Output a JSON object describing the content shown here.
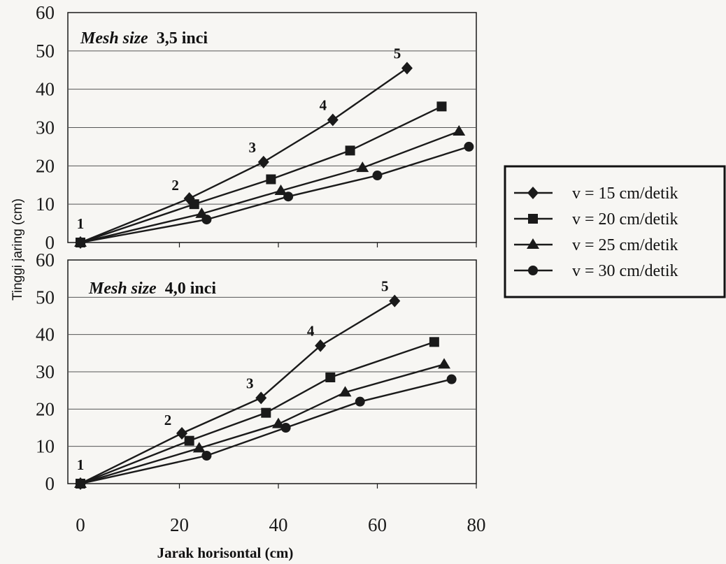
{
  "chart_data": [
    {
      "type": "line",
      "panel": "top",
      "title_italic": "Mesh size",
      "title_rest": "3,5 inci",
      "ylim": [
        0,
        60
      ],
      "xlim": [
        0,
        80
      ],
      "yticks": [
        "0",
        "10",
        "20",
        "30",
        "40",
        "50",
        "60"
      ],
      "grid": true,
      "series": [
        {
          "name": "v = 15 cm/detik",
          "marker": "diamond",
          "points": [
            [
              0,
              0
            ],
            [
              22,
              11.5
            ],
            [
              37,
              21
            ],
            [
              51,
              32
            ],
            [
              66,
              45.5
            ]
          ]
        },
        {
          "name": "v = 20 cm/detik",
          "marker": "square",
          "points": [
            [
              0,
              0
            ],
            [
              23,
              10
            ],
            [
              38.5,
              16.5
            ],
            [
              54.5,
              24
            ],
            [
              73,
              35.5
            ]
          ]
        },
        {
          "name": "v = 25 cm/detik",
          "marker": "triangle",
          "points": [
            [
              0,
              0
            ],
            [
              24.5,
              7.5
            ],
            [
              40.5,
              13.5
            ],
            [
              57,
              19.5
            ],
            [
              76.5,
              29
            ]
          ]
        },
        {
          "name": "v = 30 cm/detik",
          "marker": "circle",
          "points": [
            [
              0,
              0
            ],
            [
              25.5,
              6
            ],
            [
              42,
              12
            ],
            [
              60,
              17.5
            ],
            [
              78.5,
              25
            ]
          ]
        }
      ],
      "annotations": [
        {
          "text": "1",
          "x": 0,
          "y": 0
        },
        {
          "text": "2",
          "x": 22,
          "y": 11.5
        },
        {
          "text": "3",
          "x": 37,
          "y": 21
        },
        {
          "text": "4",
          "x": 51,
          "y": 32
        },
        {
          "text": "5",
          "x": 66,
          "y": 45.5
        }
      ]
    },
    {
      "type": "line",
      "panel": "bottom",
      "title_italic": "Mesh size",
      "title_rest": "4,0 inci",
      "ylim": [
        0,
        60
      ],
      "xlim": [
        0,
        80
      ],
      "yticks": [
        "0",
        "10",
        "20",
        "30",
        "40",
        "50",
        "60"
      ],
      "xticks": [
        "0",
        "20",
        "40",
        "60",
        "80"
      ],
      "grid": true,
      "series": [
        {
          "name": "v = 15 cm/detik",
          "marker": "diamond",
          "points": [
            [
              0,
              0
            ],
            [
              20.5,
              13.5
            ],
            [
              36.5,
              23
            ],
            [
              48.5,
              37
            ],
            [
              63.5,
              49
            ]
          ]
        },
        {
          "name": "v = 20 cm/detik",
          "marker": "square",
          "points": [
            [
              0,
              0
            ],
            [
              22,
              11.5
            ],
            [
              37.5,
              19
            ],
            [
              50.5,
              28.5
            ],
            [
              71.5,
              38
            ]
          ]
        },
        {
          "name": "v = 25 cm/detik",
          "marker": "triangle",
          "points": [
            [
              0,
              0
            ],
            [
              24,
              9.5
            ],
            [
              40,
              16
            ],
            [
              53.5,
              24.5
            ],
            [
              73.5,
              32
            ]
          ]
        },
        {
          "name": "v = 30 cm/detik",
          "marker": "circle",
          "points": [
            [
              0,
              0
            ],
            [
              25.5,
              7.5
            ],
            [
              41.5,
              15
            ],
            [
              56.5,
              22
            ],
            [
              75,
              28
            ]
          ]
        }
      ],
      "annotations": [
        {
          "text": "1",
          "x": 0,
          "y": 0
        },
        {
          "text": "2",
          "x": 20.5,
          "y": 13.5
        },
        {
          "text": "3",
          "x": 36.5,
          "y": 23
        },
        {
          "text": "4",
          "x": 48.5,
          "y": 37
        },
        {
          "text": "5",
          "x": 63.5,
          "y": 49
        }
      ]
    }
  ],
  "axes": {
    "xlabel": "Jarak horisontal (cm)",
    "ylabel": "Tinggi jaring (cm)"
  },
  "legend": {
    "placement": "right",
    "items": [
      {
        "label": "v = 15 cm/detik",
        "marker": "diamond"
      },
      {
        "label": "v = 20 cm/detik",
        "marker": "square"
      },
      {
        "label": "v = 25 cm/detik",
        "marker": "triangle"
      },
      {
        "label": "v = 30 cm/detik",
        "marker": "circle"
      }
    ]
  },
  "colors": {
    "ink": "#1a1a1a",
    "grid": "#555555",
    "background": "#f7f6f3"
  }
}
